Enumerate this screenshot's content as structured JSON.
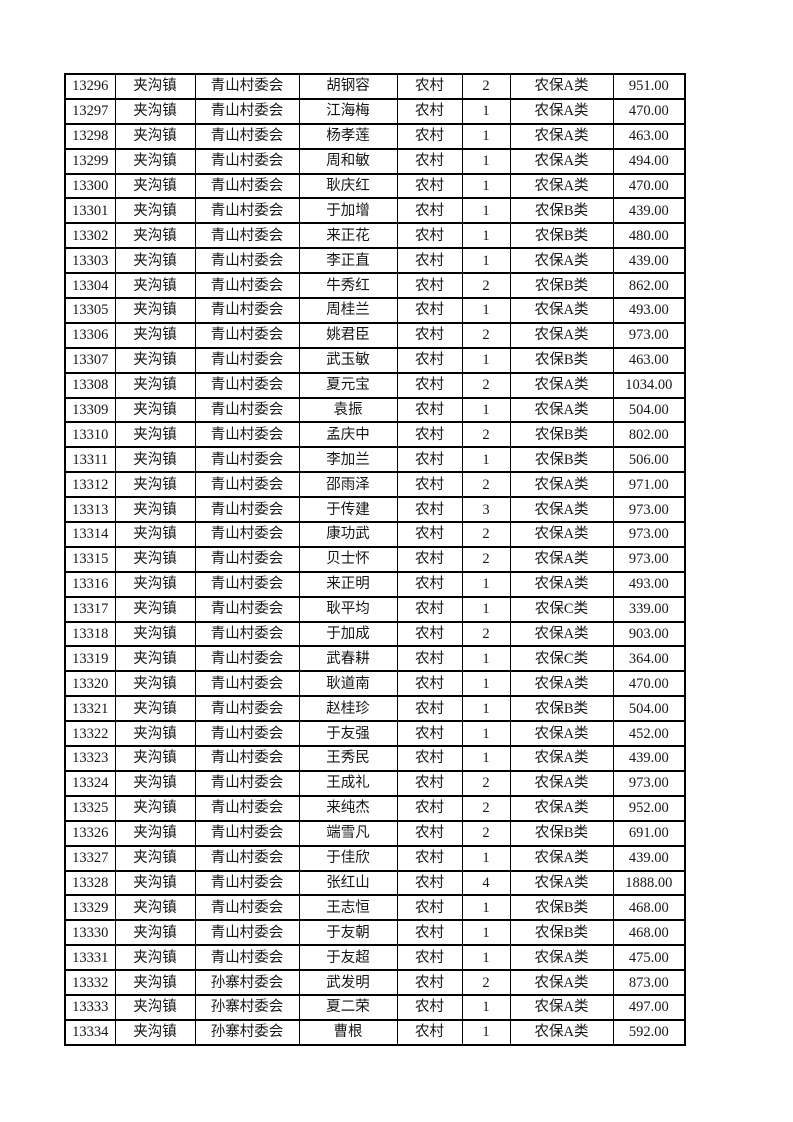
{
  "document": {
    "table": {
      "rows": [
        {
          "id": "13296",
          "town": "夹沟镇",
          "village": "青山村委会",
          "name": "胡钢容",
          "residence": "农村",
          "count": "2",
          "category": "农保A类",
          "amount": "951.00"
        },
        {
          "id": "13297",
          "town": "夹沟镇",
          "village": "青山村委会",
          "name": "江海梅",
          "residence": "农村",
          "count": "1",
          "category": "农保A类",
          "amount": "470.00"
        },
        {
          "id": "13298",
          "town": "夹沟镇",
          "village": "青山村委会",
          "name": "杨孝莲",
          "residence": "农村",
          "count": "1",
          "category": "农保A类",
          "amount": "463.00"
        },
        {
          "id": "13299",
          "town": "夹沟镇",
          "village": "青山村委会",
          "name": "周和敏",
          "residence": "农村",
          "count": "1",
          "category": "农保A类",
          "amount": "494.00"
        },
        {
          "id": "13300",
          "town": "夹沟镇",
          "village": "青山村委会",
          "name": "耿庆红",
          "residence": "农村",
          "count": "1",
          "category": "农保A类",
          "amount": "470.00"
        },
        {
          "id": "13301",
          "town": "夹沟镇",
          "village": "青山村委会",
          "name": "于加增",
          "residence": "农村",
          "count": "1",
          "category": "农保B类",
          "amount": "439.00"
        },
        {
          "id": "13302",
          "town": "夹沟镇",
          "village": "青山村委会",
          "name": "来正花",
          "residence": "农村",
          "count": "1",
          "category": "农保B类",
          "amount": "480.00"
        },
        {
          "id": "13303",
          "town": "夹沟镇",
          "village": "青山村委会",
          "name": "李正直",
          "residence": "农村",
          "count": "1",
          "category": "农保A类",
          "amount": "439.00"
        },
        {
          "id": "13304",
          "town": "夹沟镇",
          "village": "青山村委会",
          "name": "牛秀红",
          "residence": "农村",
          "count": "2",
          "category": "农保B类",
          "amount": "862.00"
        },
        {
          "id": "13305",
          "town": "夹沟镇",
          "village": "青山村委会",
          "name": "周桂兰",
          "residence": "农村",
          "count": "1",
          "category": "农保A类",
          "amount": "493.00"
        },
        {
          "id": "13306",
          "town": "夹沟镇",
          "village": "青山村委会",
          "name": "姚君臣",
          "residence": "农村",
          "count": "2",
          "category": "农保A类",
          "amount": "973.00"
        },
        {
          "id": "13307",
          "town": "夹沟镇",
          "village": "青山村委会",
          "name": "武玉敏",
          "residence": "农村",
          "count": "1",
          "category": "农保B类",
          "amount": "463.00"
        },
        {
          "id": "13308",
          "town": "夹沟镇",
          "village": "青山村委会",
          "name": "夏元宝",
          "residence": "农村",
          "count": "2",
          "category": "农保A类",
          "amount": "1034.00"
        },
        {
          "id": "13309",
          "town": "夹沟镇",
          "village": "青山村委会",
          "name": "袁振",
          "residence": "农村",
          "count": "1",
          "category": "农保A类",
          "amount": "504.00"
        },
        {
          "id": "13310",
          "town": "夹沟镇",
          "village": "青山村委会",
          "name": "孟庆中",
          "residence": "农村",
          "count": "2",
          "category": "农保B类",
          "amount": "802.00"
        },
        {
          "id": "13311",
          "town": "夹沟镇",
          "village": "青山村委会",
          "name": "李加兰",
          "residence": "农村",
          "count": "1",
          "category": "农保B类",
          "amount": "506.00"
        },
        {
          "id": "13312",
          "town": "夹沟镇",
          "village": "青山村委会",
          "name": "邵雨泽",
          "residence": "农村",
          "count": "2",
          "category": "农保A类",
          "amount": "971.00"
        },
        {
          "id": "13313",
          "town": "夹沟镇",
          "village": "青山村委会",
          "name": "于传建",
          "residence": "农村",
          "count": "3",
          "category": "农保A类",
          "amount": "973.00"
        },
        {
          "id": "13314",
          "town": "夹沟镇",
          "village": "青山村委会",
          "name": "康功武",
          "residence": "农村",
          "count": "2",
          "category": "农保A类",
          "amount": "973.00"
        },
        {
          "id": "13315",
          "town": "夹沟镇",
          "village": "青山村委会",
          "name": "贝士怀",
          "residence": "农村",
          "count": "2",
          "category": "农保A类",
          "amount": "973.00"
        },
        {
          "id": "13316",
          "town": "夹沟镇",
          "village": "青山村委会",
          "name": "来正明",
          "residence": "农村",
          "count": "1",
          "category": "农保A类",
          "amount": "493.00"
        },
        {
          "id": "13317",
          "town": "夹沟镇",
          "village": "青山村委会",
          "name": "耿平均",
          "residence": "农村",
          "count": "1",
          "category": "农保C类",
          "amount": "339.00"
        },
        {
          "id": "13318",
          "town": "夹沟镇",
          "village": "青山村委会",
          "name": "于加成",
          "residence": "农村",
          "count": "2",
          "category": "农保A类",
          "amount": "903.00"
        },
        {
          "id": "13319",
          "town": "夹沟镇",
          "village": "青山村委会",
          "name": "武春耕",
          "residence": "农村",
          "count": "1",
          "category": "农保C类",
          "amount": "364.00"
        },
        {
          "id": "13320",
          "town": "夹沟镇",
          "village": "青山村委会",
          "name": "耿道南",
          "residence": "农村",
          "count": "1",
          "category": "农保A类",
          "amount": "470.00"
        },
        {
          "id": "13321",
          "town": "夹沟镇",
          "village": "青山村委会",
          "name": "赵桂珍",
          "residence": "农村",
          "count": "1",
          "category": "农保B类",
          "amount": "504.00"
        },
        {
          "id": "13322",
          "town": "夹沟镇",
          "village": "青山村委会",
          "name": "于友强",
          "residence": "农村",
          "count": "1",
          "category": "农保A类",
          "amount": "452.00"
        },
        {
          "id": "13323",
          "town": "夹沟镇",
          "village": "青山村委会",
          "name": "王秀民",
          "residence": "农村",
          "count": "1",
          "category": "农保A类",
          "amount": "439.00"
        },
        {
          "id": "13324",
          "town": "夹沟镇",
          "village": "青山村委会",
          "name": "王成礼",
          "residence": "农村",
          "count": "2",
          "category": "农保A类",
          "amount": "973.00"
        },
        {
          "id": "13325",
          "town": "夹沟镇",
          "village": "青山村委会",
          "name": "来纯杰",
          "residence": "农村",
          "count": "2",
          "category": "农保A类",
          "amount": "952.00"
        },
        {
          "id": "13326",
          "town": "夹沟镇",
          "village": "青山村委会",
          "name": "端雪凡",
          "residence": "农村",
          "count": "2",
          "category": "农保B类",
          "amount": "691.00"
        },
        {
          "id": "13327",
          "town": "夹沟镇",
          "village": "青山村委会",
          "name": "于佳欣",
          "residence": "农村",
          "count": "1",
          "category": "农保A类",
          "amount": "439.00"
        },
        {
          "id": "13328",
          "town": "夹沟镇",
          "village": "青山村委会",
          "name": "张红山",
          "residence": "农村",
          "count": "4",
          "category": "农保A类",
          "amount": "1888.00"
        },
        {
          "id": "13329",
          "town": "夹沟镇",
          "village": "青山村委会",
          "name": "王志恒",
          "residence": "农村",
          "count": "1",
          "category": "农保B类",
          "amount": "468.00"
        },
        {
          "id": "13330",
          "town": "夹沟镇",
          "village": "青山村委会",
          "name": "于友朝",
          "residence": "农村",
          "count": "1",
          "category": "农保B类",
          "amount": "468.00"
        },
        {
          "id": "13331",
          "town": "夹沟镇",
          "village": "青山村委会",
          "name": "于友超",
          "residence": "农村",
          "count": "1",
          "category": "农保A类",
          "amount": "475.00"
        },
        {
          "id": "13332",
          "town": "夹沟镇",
          "village": "孙寨村委会",
          "name": "武发明",
          "residence": "农村",
          "count": "2",
          "category": "农保A类",
          "amount": "873.00"
        },
        {
          "id": "13333",
          "town": "夹沟镇",
          "village": "孙寨村委会",
          "name": "夏二荣",
          "residence": "农村",
          "count": "1",
          "category": "农保A类",
          "amount": "497.00"
        },
        {
          "id": "13334",
          "town": "夹沟镇",
          "village": "孙寨村委会",
          "name": "曹根",
          "residence": "农村",
          "count": "1",
          "category": "农保A类",
          "amount": "592.00"
        }
      ]
    }
  }
}
